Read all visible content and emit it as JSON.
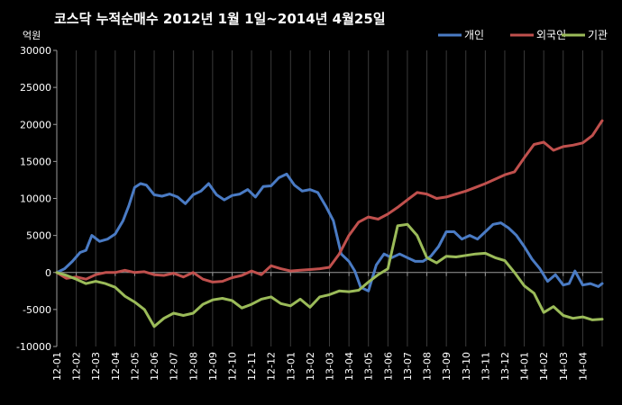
{
  "chart_data": {
    "type": "line",
    "title": "코스닥  누적순매수 2012년 1월 1일~2014년 4월25일",
    "unit_label": "억원",
    "ylim": [
      -10000,
      30000
    ],
    "y_ticks": [
      "30000",
      "25000",
      "20000",
      "15000",
      "10000",
      "5000",
      "0",
      "-5000",
      "-10000"
    ],
    "categories": [
      "12-01",
      "12-02",
      "12-03",
      "12-04",
      "12-05",
      "12-06",
      "12-07",
      "12-08",
      "12-09",
      "12-10",
      "12-11",
      "12-12",
      "13-01",
      "13-02",
      "13-03",
      "13-04",
      "13-05",
      "13-06",
      "13-07",
      "13-08",
      "13-09",
      "13-10",
      "13-11",
      "13-12",
      "14-01",
      "14-02",
      "14-03",
      "14-04"
    ],
    "x_range": [
      0,
      28
    ],
    "grid": "vertical-category-gridlines",
    "legend_position": "top-right",
    "series": [
      {
        "name": "개인",
        "color": "#4a7bc4",
        "x": [
          0,
          0.4,
          0.8,
          1.2,
          1.5,
          1.8,
          2.2,
          2.6,
          3.0,
          3.4,
          3.7,
          4.0,
          4.3,
          4.6,
          5.0,
          5.4,
          5.8,
          6.2,
          6.6,
          7.0,
          7.4,
          7.8,
          8.2,
          8.6,
          9.0,
          9.4,
          9.8,
          10.2,
          10.6,
          11.0,
          11.4,
          11.8,
          12.2,
          12.6,
          13.0,
          13.4,
          13.8,
          14.2,
          14.6,
          15.0,
          15.3,
          15.6,
          16.0,
          16.4,
          16.8,
          17.2,
          17.6,
          18.0,
          18.4,
          18.8,
          19.2,
          19.6,
          20.0,
          20.4,
          20.8,
          21.2,
          21.6,
          22.0,
          22.4,
          22.8,
          23.2,
          23.6,
          24.0,
          24.4,
          24.8,
          25.2,
          25.6,
          26.0,
          26.3,
          26.6,
          27.0,
          27.4,
          27.8,
          28.0
        ],
        "values": [
          0,
          500,
          1500,
          2700,
          3000,
          5000,
          4200,
          4500,
          5200,
          7000,
          9000,
          11500,
          12000,
          11800,
          10500,
          10300,
          10600,
          10200,
          9300,
          10500,
          11000,
          12000,
          10500,
          9800,
          10400,
          10600,
          11200,
          10200,
          11600,
          11700,
          12800,
          13300,
          11800,
          11000,
          11200,
          10800,
          9000,
          7000,
          2500,
          1500,
          200,
          -2000,
          -2500,
          1000,
          2500,
          2000,
          2500,
          2000,
          1500,
          1500,
          2200,
          3500,
          5500,
          5500,
          4500,
          5000,
          4500,
          5500,
          6500,
          6700,
          6000,
          5000,
          3500,
          1800,
          500,
          -1200,
          -300,
          -1700,
          -1500,
          200,
          -1700,
          -1500,
          -1900,
          -1500
        ]
      },
      {
        "name": "외국인",
        "color": "#c0504d",
        "x": [
          0,
          0.5,
          1.0,
          1.5,
          2.0,
          2.5,
          3.0,
          3.5,
          4.0,
          4.5,
          5.0,
          5.5,
          6.0,
          6.5,
          7.0,
          7.5,
          8.0,
          8.5,
          9.0,
          9.5,
          10.0,
          10.5,
          11.0,
          11.5,
          12.0,
          12.5,
          13.0,
          13.5,
          14.0,
          14.5,
          15.0,
          15.5,
          16.0,
          16.5,
          17.0,
          17.5,
          18.0,
          18.5,
          19.0,
          19.5,
          20.0,
          20.5,
          21.0,
          21.5,
          22.0,
          22.5,
          23.0,
          23.5,
          24.0,
          24.5,
          25.0,
          25.5,
          26.0,
          26.5,
          27.0,
          27.5,
          28.0
        ],
        "values": [
          0,
          -800,
          -600,
          -900,
          -300,
          0,
          0,
          300,
          0,
          100,
          -300,
          -400,
          -100,
          -600,
          0,
          -900,
          -1300,
          -1200,
          -700,
          -400,
          200,
          -300,
          900,
          500,
          200,
          300,
          400,
          500,
          700,
          2500,
          5000,
          6800,
          7500,
          7200,
          7900,
          8800,
          9800,
          10800,
          10600,
          10000,
          10200,
          10600,
          11000,
          11500,
          12000,
          12600,
          13200,
          13600,
          15500,
          17300,
          17600,
          16500,
          17000,
          17200,
          17500,
          18500,
          20500
        ]
      },
      {
        "name": "기관",
        "color": "#9bbb59",
        "x": [
          0,
          0.5,
          1.0,
          1.5,
          2.0,
          2.5,
          3.0,
          3.5,
          4.0,
          4.5,
          5.0,
          5.5,
          6.0,
          6.5,
          7.0,
          7.5,
          8.0,
          8.5,
          9.0,
          9.5,
          10.0,
          10.5,
          11.0,
          11.5,
          12.0,
          12.5,
          13.0,
          13.5,
          14.0,
          14.5,
          15.0,
          15.5,
          16.0,
          16.5,
          17.0,
          17.5,
          18.0,
          18.5,
          19.0,
          19.5,
          20.0,
          20.5,
          21.0,
          21.5,
          22.0,
          22.5,
          23.0,
          23.5,
          24.0,
          24.5,
          25.0,
          25.5,
          26.0,
          26.5,
          27.0,
          27.5,
          28.0
        ],
        "values": [
          0,
          -400,
          -900,
          -1500,
          -1200,
          -1500,
          -2000,
          -3200,
          -4000,
          -5000,
          -7300,
          -6200,
          -5500,
          -5800,
          -5500,
          -4300,
          -3700,
          -3500,
          -3800,
          -4800,
          -4300,
          -3600,
          -3300,
          -4200,
          -4500,
          -3600,
          -4700,
          -3300,
          -3000,
          -2500,
          -2600,
          -2400,
          -1300,
          -300,
          500,
          6300,
          6500,
          5000,
          2000,
          1300,
          2200,
          2100,
          2300,
          2500,
          2600,
          2000,
          1600,
          0,
          -1800,
          -2800,
          -5400,
          -4600,
          -5800,
          -6200,
          -6000,
          -6400,
          -6300
        ]
      }
    ]
  }
}
